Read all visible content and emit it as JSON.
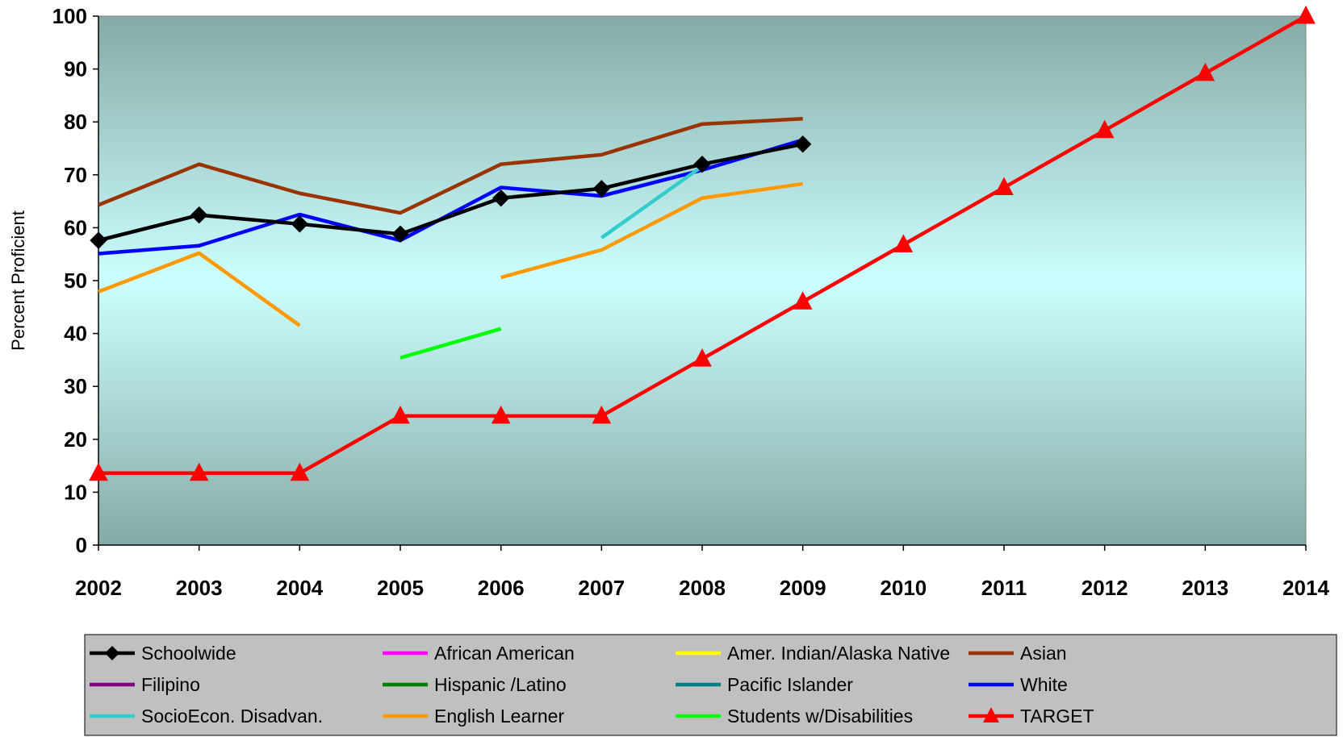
{
  "chart_data": {
    "type": "line",
    "title": "",
    "xlabel": "",
    "ylabel": "Percent Proficient",
    "x": [
      "2002",
      "2003",
      "2004",
      "2005",
      "2006",
      "2007",
      "2008",
      "2009",
      "2010",
      "2011",
      "2012",
      "2013",
      "2014"
    ],
    "ylim": [
      0,
      100
    ],
    "yticks": [
      0,
      10,
      20,
      30,
      40,
      50,
      60,
      70,
      80,
      90,
      100
    ],
    "grid": false,
    "legend_position": "bottom",
    "series": [
      {
        "name": "Schoolwide",
        "color": "#000000",
        "marker": "diamond",
        "values": [
          57.6,
          62.4,
          60.7,
          58.8,
          65.6,
          67.4,
          72.0,
          75.8,
          null,
          null,
          null,
          null,
          null
        ]
      },
      {
        "name": "African American",
        "color": "#ff00ff",
        "marker": "none",
        "values": [
          null,
          null,
          null,
          null,
          null,
          null,
          null,
          null,
          null,
          null,
          null,
          null,
          null
        ]
      },
      {
        "name": "Amer. Indian/Alaska Native",
        "color": "#ffff00",
        "marker": "none",
        "values": [
          null,
          null,
          null,
          null,
          null,
          null,
          null,
          null,
          null,
          null,
          null,
          null,
          null
        ]
      },
      {
        "name": "Asian",
        "color": "#993300",
        "marker": "none",
        "values": [
          64.3,
          72.0,
          66.5,
          62.8,
          72.0,
          73.8,
          79.6,
          80.6,
          null,
          null,
          null,
          null,
          null
        ]
      },
      {
        "name": "Filipino",
        "color": "#800080",
        "marker": "none",
        "values": [
          null,
          null,
          null,
          null,
          null,
          null,
          null,
          null,
          null,
          null,
          null,
          null,
          null
        ]
      },
      {
        "name": "Hispanic /Latino",
        "color": "#008000",
        "marker": "none",
        "values": [
          null,
          null,
          null,
          null,
          null,
          null,
          null,
          null,
          null,
          null,
          null,
          null,
          null
        ]
      },
      {
        "name": "Pacific Islander",
        "color": "#008080",
        "marker": "none",
        "values": [
          null,
          null,
          null,
          null,
          null,
          null,
          null,
          null,
          null,
          null,
          null,
          null,
          null
        ]
      },
      {
        "name": "White",
        "color": "#0000ff",
        "marker": "none",
        "values": [
          55.1,
          56.6,
          62.5,
          57.6,
          67.6,
          66.0,
          70.9,
          76.6,
          null,
          null,
          null,
          null,
          null
        ]
      },
      {
        "name": "SocioEcon. Disadvan.",
        "color": "#33cccc",
        "marker": "none",
        "values": [
          null,
          null,
          null,
          null,
          null,
          58.1,
          71.6,
          null,
          null,
          null,
          null,
          null,
          null
        ]
      },
      {
        "name": "English Learner",
        "color": "#ff9900",
        "marker": "none",
        "values": [
          47.9,
          55.2,
          41.5,
          null,
          50.6,
          55.8,
          65.6,
          68.3,
          null,
          null,
          null,
          null,
          null
        ]
      },
      {
        "name": "Students w/Disabilities",
        "color": "#00ff00",
        "marker": "none",
        "values": [
          null,
          null,
          null,
          35.4,
          40.9,
          null,
          null,
          null,
          null,
          null,
          null,
          null,
          null
        ]
      },
      {
        "name": "TARGET",
        "color": "#ff0000",
        "marker": "triangle",
        "values": [
          13.6,
          13.6,
          13.6,
          24.4,
          24.4,
          24.4,
          35.2,
          46.0,
          56.8,
          67.6,
          78.4,
          89.2,
          100
        ]
      }
    ]
  }
}
